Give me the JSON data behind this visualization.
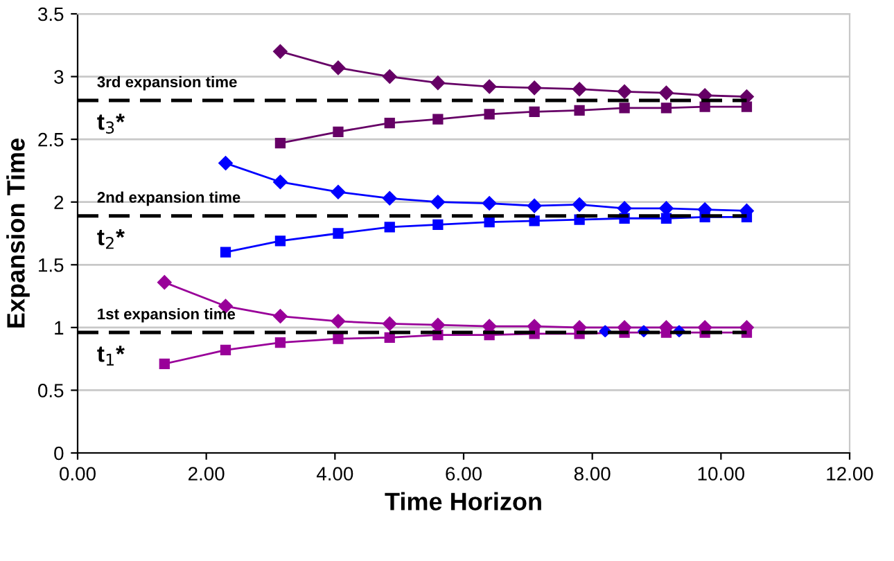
{
  "chart_data": {
    "type": "line",
    "xlabel": "Time Horizon",
    "ylabel": "Expansion Time",
    "xlim": [
      0,
      12
    ],
    "ylim": [
      0,
      3.5
    ],
    "xticks": [
      {
        "value": 0,
        "label": "0.00"
      },
      {
        "value": 2,
        "label": "2.00"
      },
      {
        "value": 4,
        "label": "4.00"
      },
      {
        "value": 6,
        "label": "6.00"
      },
      {
        "value": 8,
        "label": "8.00"
      },
      {
        "value": 10,
        "label": "10.00"
      },
      {
        "value": 12,
        "label": "12.00"
      }
    ],
    "yticks": [
      0,
      0.5,
      1,
      1.5,
      2,
      2.5,
      3,
      3.5
    ],
    "grid": "y",
    "legend": false,
    "series": [
      {
        "color": "#990099",
        "marker": "diamond",
        "x": [
          1.35,
          2.3,
          3.15,
          4.05,
          4.85,
          5.6,
          6.4,
          7.1,
          7.8,
          8.5,
          9.15,
          9.75,
          10.4
        ],
        "values": [
          1.36,
          1.17,
          1.09,
          1.05,
          1.03,
          1.02,
          1.01,
          1.01,
          1.0,
          1.0,
          1.0,
          1.0,
          1.0
        ]
      },
      {
        "color": "#990099",
        "marker": "square",
        "x": [
          1.35,
          2.3,
          3.15,
          4.05,
          4.85,
          5.6,
          6.4,
          7.1,
          7.8,
          8.5,
          9.15,
          9.75,
          10.4
        ],
        "values": [
          0.71,
          0.82,
          0.88,
          0.91,
          0.92,
          0.94,
          0.94,
          0.95,
          0.95,
          0.96,
          0.96,
          0.96,
          0.96
        ]
      },
      {
        "type": "scatter",
        "color": "#0000ff",
        "marker": "diamond",
        "x": [
          8.2,
          8.8,
          9.35
        ],
        "values": [
          0.97,
          0.97,
          0.97
        ]
      },
      {
        "color": "#0000ff",
        "marker": "diamond",
        "x": [
          2.3,
          3.15,
          4.05,
          4.85,
          5.6,
          6.4,
          7.1,
          7.8,
          8.5,
          9.15,
          9.75,
          10.4
        ],
        "values": [
          2.31,
          2.16,
          2.08,
          2.03,
          2.0,
          1.99,
          1.97,
          1.98,
          1.95,
          1.95,
          1.94,
          1.93
        ]
      },
      {
        "color": "#0000ff",
        "marker": "square",
        "x": [
          2.3,
          3.15,
          4.05,
          4.85,
          5.6,
          6.4,
          7.1,
          7.8,
          8.5,
          9.15,
          9.75,
          10.4
        ],
        "values": [
          1.6,
          1.69,
          1.75,
          1.8,
          1.82,
          1.84,
          1.85,
          1.86,
          1.87,
          1.87,
          1.88,
          1.88
        ]
      },
      {
        "color": "#660066",
        "marker": "diamond",
        "x": [
          3.15,
          4.05,
          4.85,
          5.6,
          6.4,
          7.1,
          7.8,
          8.5,
          9.15,
          9.75,
          10.4
        ],
        "values": [
          3.2,
          3.07,
          3.0,
          2.95,
          2.92,
          2.91,
          2.9,
          2.88,
          2.87,
          2.85,
          2.84
        ]
      },
      {
        "color": "#660066",
        "marker": "square",
        "x": [
          3.15,
          4.05,
          4.85,
          5.6,
          6.4,
          7.1,
          7.8,
          8.5,
          9.15,
          9.75,
          10.4
        ],
        "values": [
          2.47,
          2.56,
          2.63,
          2.66,
          2.7,
          2.72,
          2.73,
          2.75,
          2.75,
          2.76,
          2.76
        ]
      }
    ],
    "ref_lines": [
      {
        "axis": "y",
        "value": 2.81,
        "label": "3rd expansion time",
        "color": "#000000",
        "line_style": "dashed"
      },
      {
        "axis": "y",
        "value": 1.89,
        "label": "2nd expansion time",
        "color": "#000000",
        "line_style": "dashed"
      },
      {
        "axis": "y",
        "value": 0.96,
        "label": "1st expansion time",
        "color": "#000000",
        "line_style": "dashed"
      }
    ],
    "annotations": [
      {
        "text": "t$_{3}$*",
        "y": 2.81
      },
      {
        "text": "t$_{2}$*",
        "y": 1.89
      },
      {
        "text": "t$_{1}$*",
        "y": 0.96
      }
    ]
  }
}
